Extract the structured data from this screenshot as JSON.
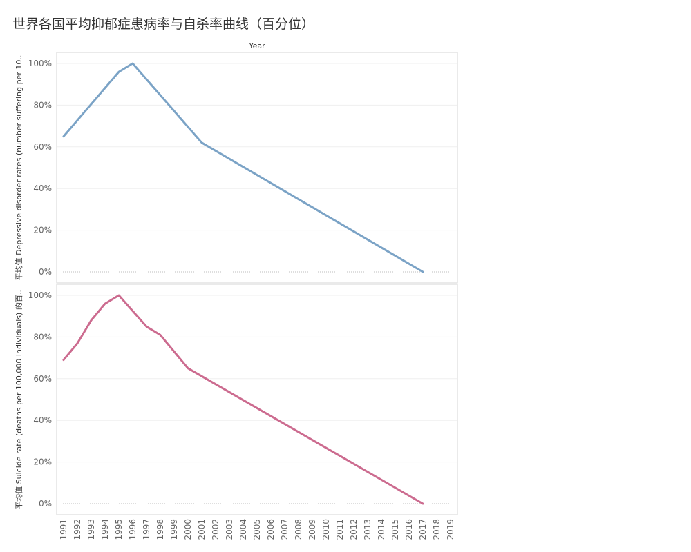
{
  "title": "世界各国平均抑郁症患病率与自杀率曲线（百分位）",
  "chart_data": {
    "type": "line",
    "x_title": "Year",
    "x": [
      1991,
      1992,
      1993,
      1994,
      1995,
      1996,
      1997,
      1998,
      1999,
      2000,
      2001,
      2002,
      2003,
      2004,
      2005,
      2006,
      2007,
      2008,
      2009,
      2010,
      2011,
      2012,
      2013,
      2014,
      2015,
      2016,
      2017,
      2018,
      2019
    ],
    "y_ticks": [
      "0%",
      "20%",
      "40%",
      "60%",
      "80%",
      "100%"
    ],
    "ylim": [
      0,
      100
    ],
    "grid": true,
    "panels": [
      {
        "ylabel": "平均值 Depressive disorder rates (number suffering per 10..",
        "color": "#7ba3c6",
        "points": [
          [
            1991,
            65
          ],
          [
            1995,
            96
          ],
          [
            1996,
            100
          ],
          [
            2001,
            62
          ],
          [
            2017,
            0
          ]
        ]
      },
      {
        "ylabel": "平均值 Suicide rate (deaths per 100,000 individuals) 的百..",
        "color": "#cc6b8f",
        "points": [
          [
            1991,
            69
          ],
          [
            1992,
            77
          ],
          [
            1993,
            88
          ],
          [
            1994,
            96
          ],
          [
            1995,
            100
          ],
          [
            1997,
            85
          ],
          [
            1998,
            81
          ],
          [
            2000,
            65
          ],
          [
            2017,
            0
          ]
        ]
      }
    ]
  }
}
